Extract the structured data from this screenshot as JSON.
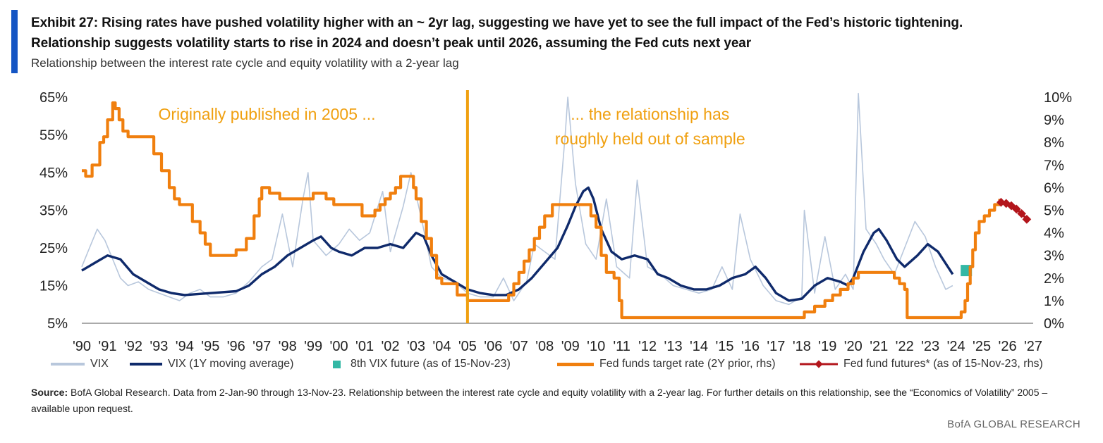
{
  "header": {
    "title_line1": "Exhibit 27: Rising rates have pushed  volatility higher with an ~ 2yr lag, suggesting  we have yet to see the full impact of the Fed’s historic tightening.",
    "title_line2": "Relationship suggests  volatility starts to rise in 2024 and doesn’t peak  until 2026, assuming  the Fed cuts  next year",
    "subtitle": "Relationship  between the interest rate cycle and equity volatility  with a 2-year lag"
  },
  "colors": {
    "accent": "#1455c4",
    "vix": "#b8c7dc",
    "vix_ma": "#0f2a6b",
    "fed_funds": "#f07f0e",
    "vix_future": "#33b8a5",
    "fed_futures": "#b3161c",
    "annotation": "#f0a010"
  },
  "chart_data": {
    "type": "line",
    "x_range": [
      1990,
      2027
    ],
    "x_ticks": [
      "'90",
      "'91",
      "'92",
      "'93",
      "'94",
      "'95",
      "'96",
      "'97",
      "'98",
      "'99",
      "'00",
      "'01",
      "'02",
      "'03",
      "'04",
      "'05",
      "'06",
      "'07",
      "'08",
      "'09",
      "'10",
      "'11",
      "'12",
      "'13",
      "'14",
      "'15",
      "'16",
      "'17",
      "'18",
      "'19",
      "'20",
      "'21",
      "'22",
      "'23",
      "'24",
      "'25",
      "'26",
      "'27"
    ],
    "y_left": {
      "ticks": [
        "65%",
        "55%",
        "45%",
        "35%",
        "25%",
        "15%",
        "5%"
      ],
      "range": [
        5,
        65
      ]
    },
    "y_right": {
      "ticks": [
        "10%",
        "9%",
        "8%",
        "7%",
        "6%",
        "5%",
        "4%",
        "3%",
        "2%",
        "1%",
        "0%"
      ],
      "range": [
        0,
        10
      ]
    },
    "annotations": [
      {
        "text": "Originally published  in 2005 ...",
        "x": 1997.2
      },
      {
        "text": "... the relationship has",
        "x": 2012.1
      },
      {
        "text": "roughly held out of sample",
        "x": 2012.1
      }
    ],
    "divider_x": 2005.0,
    "series": [
      {
        "name": "VIX",
        "axis": "left",
        "points": [
          [
            1990,
            20
          ],
          [
            1990.3,
            25
          ],
          [
            1990.6,
            30
          ],
          [
            1990.9,
            27
          ],
          [
            1991.2,
            22
          ],
          [
            1991.5,
            17
          ],
          [
            1991.8,
            15
          ],
          [
            1992.2,
            16
          ],
          [
            1992.6,
            14
          ],
          [
            1993,
            13
          ],
          [
            1993.4,
            12
          ],
          [
            1993.8,
            11
          ],
          [
            1994.2,
            13
          ],
          [
            1994.6,
            14
          ],
          [
            1995,
            12
          ],
          [
            1995.5,
            12
          ],
          [
            1996,
            13
          ],
          [
            1996.5,
            16
          ],
          [
            1997,
            20
          ],
          [
            1997.4,
            22
          ],
          [
            1997.8,
            34
          ],
          [
            1998.2,
            20
          ],
          [
            1998.6,
            38
          ],
          [
            1998.8,
            45
          ],
          [
            1999,
            27
          ],
          [
            1999.5,
            23
          ],
          [
            2000,
            26
          ],
          [
            2000.4,
            30
          ],
          [
            2000.8,
            27
          ],
          [
            2001.2,
            29
          ],
          [
            2001.7,
            40
          ],
          [
            2002,
            24
          ],
          [
            2002.5,
            36
          ],
          [
            2002.8,
            45
          ],
          [
            2003.2,
            33
          ],
          [
            2003.6,
            20
          ],
          [
            2004,
            17
          ],
          [
            2004.5,
            16
          ],
          [
            2005,
            13
          ],
          [
            2005.5,
            12
          ],
          [
            2006,
            12
          ],
          [
            2006.4,
            17
          ],
          [
            2006.8,
            11
          ],
          [
            2007.3,
            16
          ],
          [
            2007.6,
            26
          ],
          [
            2008,
            24
          ],
          [
            2008.4,
            22
          ],
          [
            2008.8,
            55
          ],
          [
            2008.9,
            65
          ],
          [
            2009.2,
            42
          ],
          [
            2009.6,
            26
          ],
          [
            2010,
            22
          ],
          [
            2010.4,
            38
          ],
          [
            2010.8,
            20
          ],
          [
            2011.3,
            17
          ],
          [
            2011.6,
            43
          ],
          [
            2012,
            20
          ],
          [
            2012.5,
            18
          ],
          [
            2013,
            15
          ],
          [
            2013.5,
            14
          ],
          [
            2014,
            13
          ],
          [
            2014.5,
            14
          ],
          [
            2014.9,
            20
          ],
          [
            2015.3,
            14
          ],
          [
            2015.6,
            34
          ],
          [
            2016,
            22
          ],
          [
            2016.5,
            15
          ],
          [
            2017,
            11
          ],
          [
            2017.5,
            10
          ],
          [
            2018,
            12
          ],
          [
            2018.1,
            35
          ],
          [
            2018.5,
            13
          ],
          [
            2018.9,
            28
          ],
          [
            2019.3,
            14
          ],
          [
            2019.7,
            18
          ],
          [
            2020,
            14
          ],
          [
            2020.2,
            66
          ],
          [
            2020.5,
            30
          ],
          [
            2020.9,
            26
          ],
          [
            2021.2,
            22
          ],
          [
            2021.6,
            18
          ],
          [
            2022,
            25
          ],
          [
            2022.4,
            32
          ],
          [
            2022.8,
            28
          ],
          [
            2023.2,
            20
          ],
          [
            2023.6,
            14
          ],
          [
            2023.87,
            15
          ]
        ]
      },
      {
        "name": "VIX (1Y moving average)",
        "axis": "left",
        "points": [
          [
            1990,
            19
          ],
          [
            1990.5,
            21
          ],
          [
            1991,
            23
          ],
          [
            1991.5,
            22
          ],
          [
            1992,
            18
          ],
          [
            1992.5,
            16
          ],
          [
            1993,
            14
          ],
          [
            1993.5,
            13
          ],
          [
            1994,
            12.5
          ],
          [
            1995,
            13
          ],
          [
            1996,
            13.5
          ],
          [
            1996.5,
            15
          ],
          [
            1997,
            18
          ],
          [
            1997.5,
            20
          ],
          [
            1998,
            23
          ],
          [
            1998.5,
            25
          ],
          [
            1999,
            27
          ],
          [
            1999.3,
            28
          ],
          [
            1999.7,
            25
          ],
          [
            2000,
            24
          ],
          [
            2000.5,
            23
          ],
          [
            2001,
            25
          ],
          [
            2001.5,
            25
          ],
          [
            2002,
            26
          ],
          [
            2002.5,
            25
          ],
          [
            2003,
            29
          ],
          [
            2003.3,
            28
          ],
          [
            2003.6,
            23
          ],
          [
            2004,
            18
          ],
          [
            2004.5,
            16
          ],
          [
            2005,
            14
          ],
          [
            2005.5,
            13
          ],
          [
            2006,
            12.5
          ],
          [
            2006.5,
            12.5
          ],
          [
            2007,
            14
          ],
          [
            2007.5,
            17
          ],
          [
            2008,
            21
          ],
          [
            2008.5,
            25
          ],
          [
            2008.9,
            31
          ],
          [
            2009.2,
            36
          ],
          [
            2009.5,
            40
          ],
          [
            2009.7,
            41
          ],
          [
            2009.9,
            38
          ],
          [
            2010.2,
            30
          ],
          [
            2010.6,
            24
          ],
          [
            2011,
            22
          ],
          [
            2011.5,
            23
          ],
          [
            2012,
            22
          ],
          [
            2012.4,
            18
          ],
          [
            2012.8,
            17
          ],
          [
            2013.3,
            15
          ],
          [
            2013.8,
            14
          ],
          [
            2014.3,
            14
          ],
          [
            2014.8,
            15
          ],
          [
            2015.3,
            17
          ],
          [
            2015.8,
            18
          ],
          [
            2016.2,
            20
          ],
          [
            2016.6,
            17
          ],
          [
            2017,
            13
          ],
          [
            2017.5,
            11
          ],
          [
            2018,
            11.5
          ],
          [
            2018.5,
            15
          ],
          [
            2019,
            17
          ],
          [
            2019.5,
            16
          ],
          [
            2019.8,
            15
          ],
          [
            2020,
            17
          ],
          [
            2020.4,
            24
          ],
          [
            2020.8,
            29
          ],
          [
            2021,
            30
          ],
          [
            2021.3,
            27
          ],
          [
            2021.7,
            22
          ],
          [
            2022,
            20
          ],
          [
            2022.5,
            23
          ],
          [
            2022.9,
            26
          ],
          [
            2023.3,
            24
          ],
          [
            2023.87,
            18
          ]
        ]
      },
      {
        "name": "8th VIX future (as of 15-Nov-23)",
        "axis": "left",
        "points": [
          [
            2024.4,
            19
          ]
        ]
      },
      {
        "name": "Fed funds target rate (2Y prior, rhs)",
        "axis": "right",
        "points": [
          [
            1990,
            6.75
          ],
          [
            1990.15,
            6.5
          ],
          [
            1990.4,
            7.0
          ],
          [
            1990.7,
            8.0
          ],
          [
            1990.85,
            8.25
          ],
          [
            1991.0,
            9.0
          ],
          [
            1991.2,
            9.75
          ],
          [
            1991.3,
            9.5
          ],
          [
            1991.45,
            9.0
          ],
          [
            1991.6,
            8.5
          ],
          [
            1991.8,
            8.25
          ],
          [
            1992.8,
            7.5
          ],
          [
            1993.1,
            6.75
          ],
          [
            1993.4,
            6.0
          ],
          [
            1993.6,
            5.5
          ],
          [
            1993.8,
            5.25
          ],
          [
            1994.3,
            4.5
          ],
          [
            1994.6,
            4.0
          ],
          [
            1994.8,
            3.5
          ],
          [
            1995.0,
            3.0
          ],
          [
            1996.0,
            3.25
          ],
          [
            1996.4,
            3.75
          ],
          [
            1996.7,
            4.75
          ],
          [
            1996.9,
            5.5
          ],
          [
            1997.0,
            6.0
          ],
          [
            1997.3,
            5.75
          ],
          [
            1997.7,
            5.5
          ],
          [
            1999.0,
            5.75
          ],
          [
            1999.5,
            5.5
          ],
          [
            1999.8,
            5.25
          ],
          [
            2000.9,
            4.75
          ],
          [
            2001.4,
            5.0
          ],
          [
            2001.6,
            5.25
          ],
          [
            2001.8,
            5.5
          ],
          [
            2002.0,
            5.75
          ],
          [
            2002.2,
            6.0
          ],
          [
            2002.4,
            6.5
          ],
          [
            2002.9,
            6.0
          ],
          [
            2003.0,
            5.5
          ],
          [
            2003.2,
            4.5
          ],
          [
            2003.4,
            3.75
          ],
          [
            2003.6,
            3.0
          ],
          [
            2003.8,
            2.0
          ],
          [
            2004.0,
            1.75
          ],
          [
            2004.6,
            1.25
          ],
          [
            2005.0,
            1.0
          ],
          [
            2006.6,
            1.25
          ],
          [
            2006.8,
            1.75
          ],
          [
            2007.0,
            2.25
          ],
          [
            2007.2,
            2.75
          ],
          [
            2007.4,
            3.25
          ],
          [
            2007.6,
            3.75
          ],
          [
            2007.8,
            4.25
          ],
          [
            2008.0,
            4.75
          ],
          [
            2008.3,
            5.25
          ],
          [
            2009.6,
            5.25
          ],
          [
            2009.8,
            4.75
          ],
          [
            2010.0,
            4.25
          ],
          [
            2010.2,
            3.0
          ],
          [
            2010.4,
            2.25
          ],
          [
            2010.7,
            2.0
          ],
          [
            2010.9,
            1.0
          ],
          [
            2011.0,
            0.25
          ],
          [
            2017.9,
            0.25
          ],
          [
            2018.1,
            0.5
          ],
          [
            2018.5,
            0.75
          ],
          [
            2018.9,
            1.0
          ],
          [
            2019.2,
            1.25
          ],
          [
            2019.5,
            1.5
          ],
          [
            2019.8,
            1.75
          ],
          [
            2020.0,
            2.0
          ],
          [
            2020.2,
            2.25
          ],
          [
            2021.4,
            2.25
          ],
          [
            2021.6,
            2.0
          ],
          [
            2021.8,
            1.75
          ],
          [
            2022.0,
            1.5
          ],
          [
            2022.1,
            0.25
          ],
          [
            2024.0,
            0.25
          ],
          [
            2024.2,
            0.5
          ],
          [
            2024.35,
            1.0
          ],
          [
            2024.45,
            1.75
          ],
          [
            2024.55,
            2.5
          ],
          [
            2024.65,
            3.25
          ],
          [
            2024.75,
            4.0
          ],
          [
            2024.9,
            4.5
          ],
          [
            2025.1,
            4.75
          ],
          [
            2025.3,
            5.0
          ],
          [
            2025.5,
            5.25
          ],
          [
            2025.7,
            5.5
          ]
        ]
      },
      {
        "name": "Fed fund futures* (as of 15-Nov-23, rhs)",
        "axis": "right",
        "points": [
          [
            2025.75,
            5.35
          ],
          [
            2025.95,
            5.3
          ],
          [
            2026.15,
            5.2
          ],
          [
            2026.35,
            5.05
          ],
          [
            2026.55,
            4.85
          ],
          [
            2026.75,
            4.6
          ]
        ]
      }
    ]
  },
  "legend": {
    "vix": "VIX",
    "vix_ma": "VIX (1Y moving average)",
    "vix_future": "8th VIX future (as of 15-Nov-23)",
    "fed_funds": "Fed funds target rate (2Y prior, rhs)",
    "fed_futures": "Fed fund futures* (as of 15-Nov-23, rhs)"
  },
  "footer": {
    "source_label": "Source:",
    "source_text": " BofA Global Research. Data from 2-Jan-90 through 13-Nov-23. Relationship between the interest rate cycle and equity volatility with a 2-year lag. For further details on this relationship, see the “Economics of Volatility” 2005 –available upon request.",
    "brand": "BofA GLOBAL RESEARCH"
  }
}
